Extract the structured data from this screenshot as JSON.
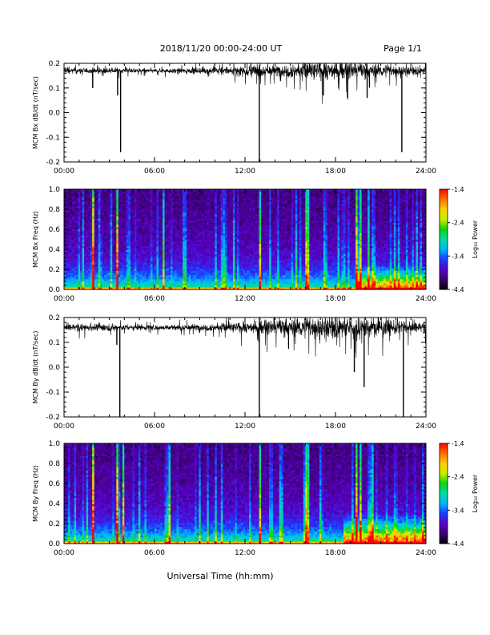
{
  "header": {
    "title": "2018/11/20  00:00-24:00 UT",
    "page": "Page 1/1"
  },
  "footer": {
    "xlabel": "Universal Time (hh:mm)"
  },
  "x_ticks": [
    "00:00",
    "06:00",
    "12:00",
    "18:00",
    "24:00"
  ],
  "colorbar": {
    "label": "Log₁₀ Power",
    "ticks": [
      "-1.4",
      "-2.4",
      "-3.4",
      "-4.4"
    ],
    "range": [
      -4.4,
      -1.4
    ],
    "colors": [
      "#000000",
      "#3a0070",
      "#5a00c8",
      "#1a3cff",
      "#00b4ff",
      "#00e0a0",
      "#10d010",
      "#c8f000",
      "#ffd000",
      "#ff7000",
      "#ff0000"
    ]
  },
  "chart_data": [
    {
      "type": "line",
      "ylabel": "MCM Bx dB/dt (nT/sec)",
      "xlim": [
        0,
        24
      ],
      "ylim": [
        -0.2,
        0.2
      ],
      "y_ticks": [
        "0.2",
        "0.1",
        "0.0",
        "-0.1",
        "-0.2"
      ],
      "baseline": 0.17,
      "noise": [
        [
          0,
          0.012
        ],
        [
          6,
          0.008
        ],
        [
          9,
          0.012
        ],
        [
          12,
          0.02
        ],
        [
          14,
          0.025
        ],
        [
          16,
          0.035
        ],
        [
          18,
          0.035
        ],
        [
          21,
          0.025
        ],
        [
          24,
          0.015
        ]
      ],
      "spikes": [
        [
          1.9,
          0.1
        ],
        [
          3.55,
          0.07
        ],
        [
          3.75,
          -0.16
        ],
        [
          12.95,
          -0.2
        ],
        [
          17.2,
          0.07
        ],
        [
          18.8,
          0.06
        ],
        [
          20.1,
          0.06
        ],
        [
          22.4,
          -0.16
        ]
      ]
    },
    {
      "type": "heatmap",
      "ylabel": "MCM Bx Freq (Hz)",
      "xlim": [
        0,
        24
      ],
      "ylim": [
        0,
        1.0
      ],
      "y_ticks": [
        "1.0",
        "0.8",
        "0.6",
        "0.4",
        "0.2",
        "0.0"
      ],
      "bright_lines": [
        [
          1.85,
          1.0
        ],
        [
          3.5,
          0.9
        ],
        [
          3.45,
          0.6
        ],
        [
          12.95,
          0.7
        ],
        [
          15.95,
          0.75
        ],
        [
          16.2,
          0.6
        ],
        [
          19.3,
          0.85
        ],
        [
          19.55,
          0.7
        ],
        [
          20.1,
          0.5
        ],
        [
          6.5,
          0.5
        ]
      ],
      "blob": [
        19.5,
        24,
        0.25,
        0.9
      ]
    },
    {
      "type": "line",
      "ylabel": "MCM By dB/dt (nT/sec)",
      "xlim": [
        0,
        24
      ],
      "ylim": [
        -0.2,
        0.2
      ],
      "y_ticks": [
        "0.2",
        "0.1",
        "0.0",
        "-0.1",
        "-0.2"
      ],
      "baseline": 0.16,
      "noise": [
        [
          0,
          0.015
        ],
        [
          6,
          0.01
        ],
        [
          9,
          0.014
        ],
        [
          12,
          0.02
        ],
        [
          14,
          0.03
        ],
        [
          16,
          0.04
        ],
        [
          18,
          0.045
        ],
        [
          20,
          0.04
        ],
        [
          22,
          0.03
        ],
        [
          24,
          0.02
        ]
      ],
      "spikes": [
        [
          3.5,
          0.09
        ],
        [
          3.7,
          -0.2
        ],
        [
          12.95,
          -0.2
        ],
        [
          19.25,
          -0.02
        ],
        [
          19.9,
          -0.08
        ],
        [
          22.5,
          -0.2
        ]
      ]
    },
    {
      "type": "heatmap",
      "ylabel": "MCM By Freq (Hz)",
      "xlim": [
        0,
        24
      ],
      "ylim": [
        0,
        1.0
      ],
      "y_ticks": [
        "1.0",
        "0.8",
        "0.6",
        "0.4",
        "0.2",
        "0.0"
      ],
      "bright_lines": [
        [
          1.85,
          1.0
        ],
        [
          3.5,
          0.9
        ],
        [
          3.85,
          0.7
        ],
        [
          6.9,
          0.6
        ],
        [
          12.95,
          0.7
        ],
        [
          15.95,
          0.8
        ],
        [
          16.2,
          0.6
        ],
        [
          19.35,
          0.85
        ],
        [
          19.55,
          0.7
        ],
        [
          20.4,
          0.5
        ]
      ],
      "blob": [
        18.5,
        24,
        0.3,
        0.95
      ]
    }
  ]
}
